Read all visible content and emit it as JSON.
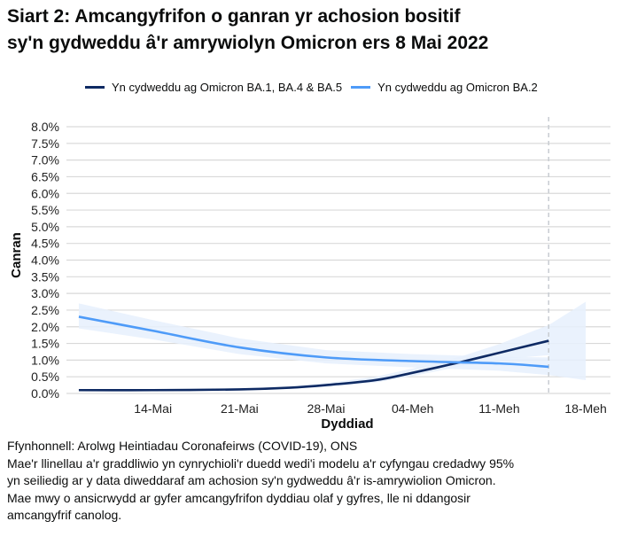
{
  "title_lines": [
    "Siart 2: Amcangyfrifon o ganran yr achosion bositif",
    "sy'n gydweddu â'r amrywiolyn Omicron ers 8 Mai 2022"
  ],
  "colors": {
    "ba1": "#0e2a63",
    "ba2": "#4e9bf8",
    "band": "#e6f0fd",
    "grid": "#d9d9d9",
    "dashed": "#c8ccd2"
  },
  "chart_data": {
    "type": "line",
    "title": "Siart 2: Amcangyfrifon o ganran yr achosion bositif sy'n gydweddu â'r amrywiolyn Omicron ers 8 Mai 2022",
    "xlabel": "Dyddiad",
    "ylabel": "Canran",
    "xlim": [
      "2022-05-07",
      "2022-06-20"
    ],
    "ylim": [
      0,
      8
    ],
    "grid": true,
    "legend": "top",
    "x_ticks": [
      {
        "date": "2022-05-14",
        "label": "14-Mai"
      },
      {
        "date": "2022-05-21",
        "label": "21-Mai"
      },
      {
        "date": "2022-05-28",
        "label": "28-Mai"
      },
      {
        "date": "2022-06-04",
        "label": "04-Meh"
      },
      {
        "date": "2022-06-11",
        "label": "11-Meh"
      },
      {
        "date": "2022-06-18",
        "label": "18-Meh"
      }
    ],
    "y_ticks": [
      "0.0%",
      "0.5%",
      "1.0%",
      "1.5%",
      "2.0%",
      "2.5%",
      "3.0%",
      "3.5%",
      "4.0%",
      "4.5%",
      "5.0%",
      "5.5%",
      "6.0%",
      "6.5%",
      "7.0%",
      "7.5%",
      "8.0%"
    ],
    "reference_line_date": "2022-06-15",
    "series": [
      {
        "name": "Yn cydweddu ag Omicron BA.1, BA.4 & BA.5",
        "color": "#0e2a63",
        "x": [
          "2022-05-08",
          "2022-05-14",
          "2022-05-21",
          "2022-05-25",
          "2022-05-28",
          "2022-06-01",
          "2022-06-04",
          "2022-06-08",
          "2022-06-11",
          "2022-06-15"
        ],
        "y": [
          0.1,
          0.1,
          0.12,
          0.17,
          0.25,
          0.4,
          0.62,
          0.95,
          1.22,
          1.58
        ],
        "lower": [
          0.08,
          0.08,
          0.1,
          0.14,
          0.2,
          0.33,
          0.52,
          0.82,
          1.02,
          1.15
        ],
        "upper": [
          0.13,
          0.13,
          0.15,
          0.21,
          0.31,
          0.5,
          0.75,
          1.12,
          1.48,
          2.05
        ]
      },
      {
        "name": "Yn cydweddu ag Omicron BA.2",
        "color": "#4e9bf8",
        "x": [
          "2022-05-08",
          "2022-05-14",
          "2022-05-21",
          "2022-05-28",
          "2022-06-04",
          "2022-06-11",
          "2022-06-15"
        ],
        "y": [
          2.3,
          1.88,
          1.38,
          1.08,
          0.97,
          0.9,
          0.8
        ],
        "lower": [
          1.95,
          1.62,
          1.18,
          0.9,
          0.78,
          0.68,
          0.55
        ],
        "upper": [
          2.7,
          2.2,
          1.65,
          1.3,
          1.18,
          1.1,
          1.08
        ]
      }
    ],
    "extended_band": {
      "x": [
        "2022-06-15",
        "2022-06-18"
      ],
      "lower": [
        0.55,
        0.4
      ],
      "upper": [
        2.05,
        2.75
      ]
    }
  },
  "notes": [
    "Ffynhonnell: Arolwg Heintiadau Coronafeirws (COVID-19), ONS",
    "Mae'r llinellau a'r graddliwio yn cynrychioli'r duedd wedi'i modelu a'r cyfyngau credadwy 95%",
    "yn seiliedig ar y data diweddaraf am achosion sy'n gydweddu â'r is-amrywiolion Omicron.",
    "Mae mwy o ansicrwydd ar gyfer amcangyfrifon dyddiau olaf y gyfres, lle ni ddangosir",
    "amcangyfrif canolog."
  ]
}
